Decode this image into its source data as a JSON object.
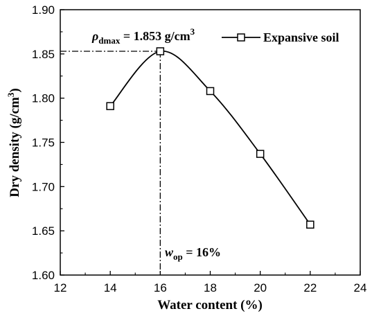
{
  "chart_data": {
    "type": "line",
    "xlabel": "Water content (%)",
    "ylabel_main": "Dry density (g/cm",
    "ylabel_sup": "3",
    "ylabel_close": ")",
    "xlim": [
      12,
      24
    ],
    "ylim": [
      1.6,
      1.9
    ],
    "xticks": [
      12,
      14,
      16,
      18,
      20,
      22,
      24
    ],
    "yticks": [
      1.6,
      1.65,
      1.7,
      1.75,
      1.8,
      1.85,
      1.9
    ],
    "xtick_labels": [
      "12",
      "14",
      "16",
      "18",
      "20",
      "22",
      "24"
    ],
    "ytick_labels": [
      "1.60",
      "1.65",
      "1.70",
      "1.75",
      "1.80",
      "1.85",
      "1.90"
    ],
    "grid": false,
    "legend_position": "top-right",
    "series": [
      {
        "name": "Expansive soil",
        "marker": "open-square",
        "color": "#000000",
        "x": [
          14,
          16,
          18,
          20,
          22
        ],
        "y": [
          1.791,
          1.853,
          1.808,
          1.737,
          1.657
        ]
      }
    ],
    "annotations": {
      "peak": {
        "x": 16,
        "y": 1.853
      },
      "rho_label": {
        "symbol": "ρ",
        "sub": "dmax",
        "text": " = 1.853 g/cm",
        "sup": "3"
      },
      "w_label": {
        "symbol": "w",
        "sub": "op",
        "text": " = 16%"
      }
    }
  }
}
